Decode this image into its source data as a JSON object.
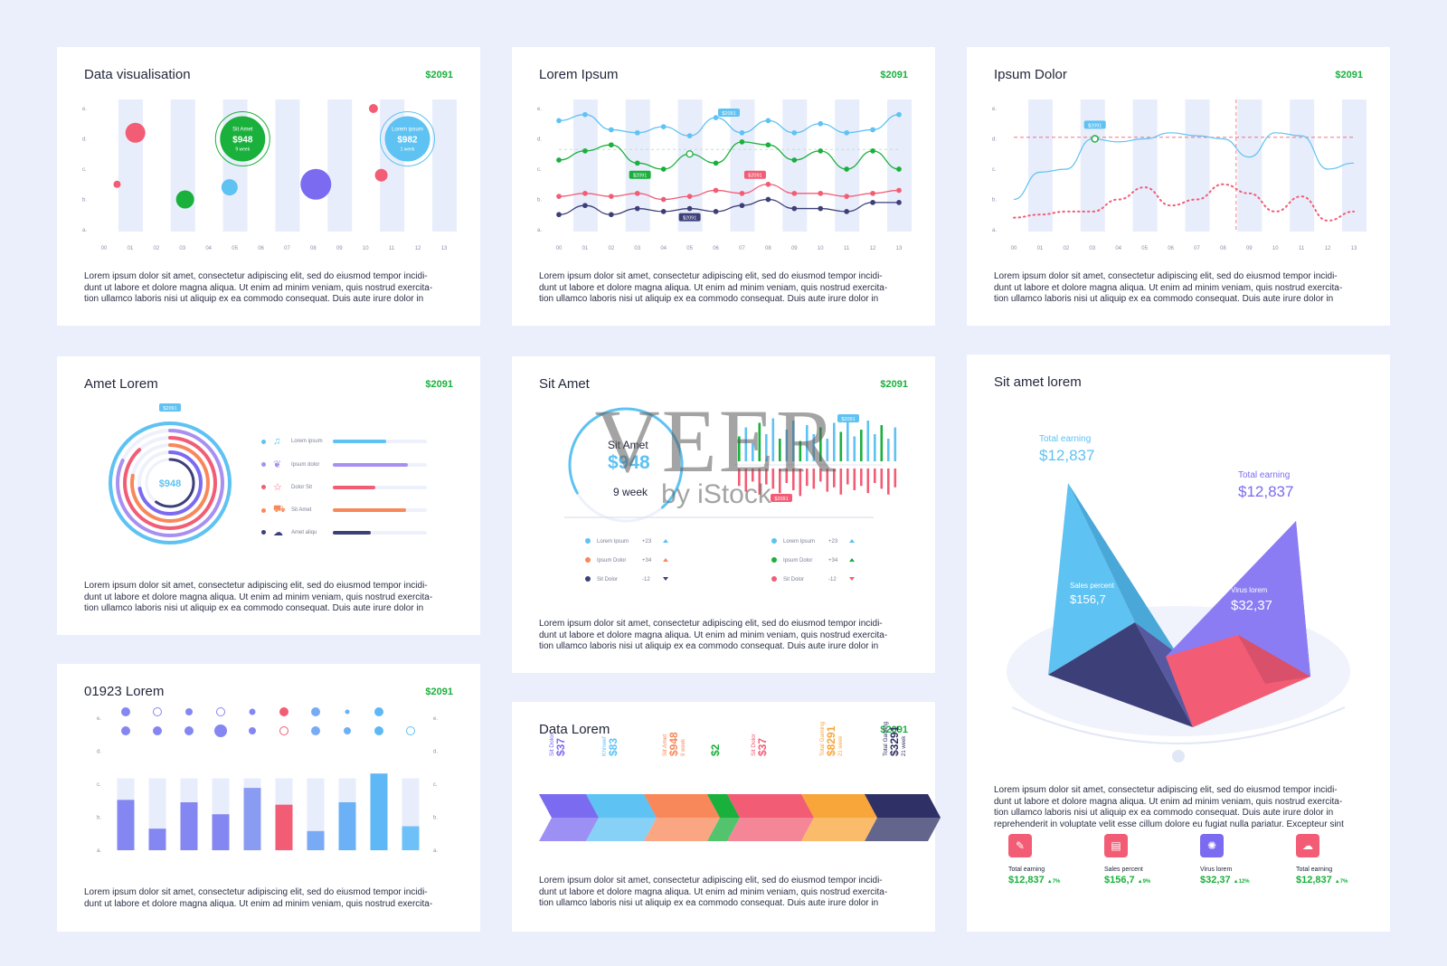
{
  "badge": "$2091",
  "desc3": "Lorem ipsum dolor sit amet, consectetur adipiscing elit, sed do eiusmod tempor incidi-\ndunt ut labore et dolore magna aliqua. Ut enim ad minim veniam, quis nostrud exercita-\ntion ullamco laboris nisi ut aliquip ex ea commodo consequat. Duis aute irure dolor in",
  "desc2": "Lorem ipsum dolor sit amet, consectetur adipiscing elit, sed do eiusmod tempor incidi-\ndunt ut labore et dolore magna aliqua. Ut enim ad minim veniam, quis nostrud exercita-",
  "desc5": "Lorem ipsum dolor sit amet, consectetur adipiscing elit, sed do eiusmod tempor incidi-\ndunt ut labore et dolore magna aliqua. Ut enim ad minim veniam, quis nostrud exercita-\ntion ullamco laboris nisi ut aliquip ex ea commodo consequat. Duis aute irure dolor in\nreprehenderit in voluptate velit esse cillum dolore eu fugiat nulla pariatur. Excepteur sint",
  "watermark": {
    "big": "VEER",
    "small": "by iStock"
  },
  "chart_data": [
    {
      "id": "bubble",
      "type": "scatter",
      "title": "Data visualisation",
      "x_ticks": [
        "00",
        "01",
        "02",
        "03",
        "04",
        "05",
        "06",
        "07",
        "08",
        "09",
        "10",
        "11",
        "12",
        "13"
      ],
      "y_ticks": [
        "a.",
        "b.",
        "c.",
        "d.",
        "e."
      ],
      "points": [
        {
          "x": 0.5,
          "y": 1.5,
          "r": 4,
          "color": "#f25d75"
        },
        {
          "x": 1.2,
          "y": 3.2,
          "r": 11,
          "color": "#f25d75"
        },
        {
          "x": 3.1,
          "y": 1.0,
          "r": 10,
          "color": "#1ab03c"
        },
        {
          "x": 4.8,
          "y": 1.4,
          "r": 9,
          "color": "#5ec2f2"
        },
        {
          "x": 8.1,
          "y": 1.5,
          "r": 17,
          "color": "#7b6bf0"
        },
        {
          "x": 10.3,
          "y": 4.0,
          "r": 5,
          "color": "#f25d75"
        },
        {
          "x": 10.6,
          "y": 1.8,
          "r": 7,
          "color": "#f25d75"
        }
      ],
      "callouts": [
        {
          "x": 5.3,
          "y": 3.0,
          "label": "Sit Amet",
          "value": "$948",
          "sub": "9 week",
          "color": "#1ab03c"
        },
        {
          "x": 11.6,
          "y": 3.0,
          "label": "Lorem ipsum",
          "value": "$982",
          "sub": "1 week",
          "color": "#5ec2f2"
        }
      ]
    },
    {
      "id": "lines",
      "type": "line",
      "title": "Lorem Ipsum",
      "x_ticks": [
        "00",
        "01",
        "02",
        "03",
        "04",
        "05",
        "06",
        "07",
        "08",
        "09",
        "10",
        "11",
        "12",
        "13"
      ],
      "y_ticks": [
        "a.",
        "b.",
        "c.",
        "d.",
        "e."
      ],
      "series": [
        {
          "color": "#5ec2f2",
          "values": [
            3.6,
            3.8,
            3.3,
            3.2,
            3.4,
            3.1,
            3.7,
            3.2,
            3.6,
            3.2,
            3.5,
            3.2,
            3.3,
            3.8
          ]
        },
        {
          "color": "#1ab03c",
          "values": [
            2.3,
            2.6,
            2.8,
            2.2,
            2.0,
            2.5,
            2.2,
            2.9,
            2.8,
            2.3,
            2.6,
            2.0,
            2.6,
            2.0
          ]
        },
        {
          "color": "#f25d75",
          "values": [
            1.1,
            1.2,
            1.1,
            1.2,
            1.0,
            1.1,
            1.3,
            1.2,
            1.5,
            1.2,
            1.2,
            1.1,
            1.2,
            1.3
          ]
        },
        {
          "color": "#3d3f78",
          "values": [
            0.5,
            0.8,
            0.5,
            0.7,
            0.6,
            0.7,
            0.6,
            0.8,
            1.0,
            0.7,
            0.7,
            0.6,
            0.9,
            0.9
          ]
        }
      ],
      "tags": [
        {
          "x": 6.5,
          "y": 3.85,
          "text": "$2091",
          "color": "#5ec2f2"
        },
        {
          "x": 3.1,
          "y": 1.8,
          "text": "$2091",
          "color": "#1ab03c"
        },
        {
          "x": 7.5,
          "y": 1.8,
          "text": "$2091",
          "color": "#f25d75"
        },
        {
          "x": 5.0,
          "y": 0.4,
          "text": "$2091",
          "color": "#3d3f78"
        }
      ]
    },
    {
      "id": "wave",
      "type": "line",
      "title": "Ipsum Dolor",
      "x_ticks": [
        "00",
        "01",
        "02",
        "03",
        "04",
        "05",
        "06",
        "07",
        "08",
        "09",
        "10",
        "11",
        "12",
        "13"
      ],
      "y_ticks": [
        "a.",
        "b.",
        "c.",
        "d.",
        "e."
      ],
      "series": [
        {
          "color": "#5ec2f2",
          "values": [
            1.0,
            1.9,
            2.0,
            3.0,
            2.9,
            3.0,
            3.2,
            3.1,
            3.0,
            2.4,
            3.2,
            3.1,
            2.0,
            2.2
          ]
        },
        {
          "color": "#f25d75",
          "dotted": true,
          "values": [
            0.4,
            0.5,
            0.6,
            0.6,
            1.0,
            1.4,
            0.8,
            1.0,
            1.5,
            1.2,
            0.6,
            1.1,
            0.3,
            0.6
          ]
        }
      ],
      "tag": {
        "x": 3.1,
        "y": 3.45,
        "text": "$2091"
      },
      "crosshair": {
        "x": 8.5,
        "y": 3.05
      }
    },
    {
      "id": "radial",
      "type": "bar",
      "title": "Amet Lorem",
      "center_value": "$948",
      "top_tag": "$2091",
      "items": [
        {
          "label": "Lorem ipsum",
          "icon": "music-note-icon",
          "glyph": "♫",
          "color": "#5ec2f2",
          "value": 0.57
        },
        {
          "label": "Ipsum dolor",
          "icon": "leaf-icon",
          "glyph": "❦",
          "color": "#a890f0",
          "value": 0.8
        },
        {
          "label": "Dolor Sit",
          "icon": "star-outline-icon",
          "glyph": "☆",
          "color": "#f25d75",
          "value": 0.45
        },
        {
          "label": "Sit Amet",
          "icon": "truck-icon",
          "glyph": "⛟",
          "color": "#f8885a",
          "value": 0.78
        },
        {
          "label": "Amet aliqu",
          "icon": "cloud-icon",
          "glyph": "☁",
          "color": "#3d3f78",
          "value": 0.4
        }
      ]
    },
    {
      "id": "gauge",
      "type": "bar",
      "title": "Sit Amet",
      "gauge_label": "Sit Amet",
      "gauge_value": "$948",
      "gauge_sub": "9 week",
      "gauge_fraction": 0.72,
      "tag_top": "$2091",
      "tag_bottom": "$2091",
      "up_bars": [
        0.55,
        0.75,
        0.4,
        0.85,
        0.6,
        0.95,
        0.5,
        0.7,
        0.9,
        0.45,
        0.8,
        0.6,
        0.75,
        0.5,
        0.85,
        0.65,
        1.0,
        0.55,
        0.7,
        0.9,
        0.6,
        0.8,
        0.5,
        0.75
      ],
      "down_bars": [
        0.6,
        0.8,
        0.45,
        0.9,
        0.55,
        0.7,
        0.85,
        0.5,
        0.75,
        0.95,
        0.6,
        0.7,
        0.45,
        0.8,
        0.65,
        0.9,
        0.55,
        0.75,
        0.6,
        0.85,
        0.5,
        0.7,
        0.9,
        0.65
      ],
      "legend": [
        {
          "label": "Lorem Ipsum",
          "value": "+23",
          "dir": "up",
          "color": "#5ec2f2"
        },
        {
          "label": "Ipsum Dolor",
          "value": "+34",
          "dir": "up",
          "color": "#f8885a"
        },
        {
          "label": "Sit Dolor",
          "value": "-12",
          "dir": "down",
          "color": "#3d3f78"
        },
        {
          "label": "Lorem Ipsum",
          "value": "+23",
          "dir": "up",
          "color": "#5ec2f2"
        },
        {
          "label": "Ipsum Dolor",
          "value": "+34",
          "dir": "up",
          "color": "#1ab03c"
        },
        {
          "label": "Sit Dolor",
          "value": "-12",
          "dir": "down",
          "color": "#f25d75"
        }
      ]
    },
    {
      "id": "stacked",
      "type": "bar",
      "title": "01923 Lorem",
      "y_ticks": [
        "a.",
        "b.",
        "c.",
        "d.",
        "e."
      ],
      "bars": [
        {
          "value": 2.1,
          "color": "#8487f2"
        },
        {
          "value": 0.9,
          "color": "#8487f2"
        },
        {
          "value": 2.0,
          "color": "#8487f2"
        },
        {
          "value": 1.5,
          "color": "#8487f2"
        },
        {
          "value": 2.6,
          "color": "#8a9cf2"
        },
        {
          "value": 1.9,
          "color": "#f25d75"
        },
        {
          "value": 0.8,
          "color": "#79aaf5"
        },
        {
          "value": 2.0,
          "color": "#6cb0f5"
        },
        {
          "value": 3.2,
          "color": "#5eb8f5"
        },
        {
          "value": 1.0,
          "color": "#6ec1f8"
        }
      ],
      "dots_top": [
        {
          "r": 4.5,
          "f": 1
        },
        {
          "r": 4.5,
          "f": 0
        },
        {
          "r": 3.5,
          "f": 1
        },
        {
          "r": 4.5,
          "f": 0
        },
        {
          "r": 3,
          "f": 1
        },
        {
          "r": 4.5,
          "f": 1
        },
        {
          "r": 4.5,
          "f": 1
        },
        {
          "r": 2,
          "f": 1
        },
        {
          "r": 4.5,
          "f": 1
        },
        {
          "r": 0,
          "f": 0
        }
      ],
      "dots_bottom": [
        {
          "r": 4.5,
          "f": 1
        },
        {
          "r": 4.5,
          "f": 1
        },
        {
          "r": 4.5,
          "f": 1
        },
        {
          "r": 6.5,
          "f": 1
        },
        {
          "r": 3.5,
          "f": 1
        },
        {
          "r": 4.5,
          "f": 0
        },
        {
          "r": 4.5,
          "f": 1
        },
        {
          "r": 3.5,
          "f": 1
        },
        {
          "r": 4.5,
          "f": 1
        },
        {
          "r": 4.5,
          "f": 0
        }
      ]
    },
    {
      "id": "arrows",
      "type": "bar",
      "title": "Data Lorem",
      "items": [
        {
          "label": "Sit Dolor",
          "value": "$37",
          "color": "#7b6bf0"
        },
        {
          "label": "Khhwef",
          "value": "$83",
          "color": "#5ec2f2"
        },
        {
          "label": "Sit Amet",
          "value": "$948",
          "sub": "9 week",
          "color": "#f8885a"
        },
        {
          "label": "",
          "value": "$2",
          "color": "#1ab03c"
        },
        {
          "label": "Sit Dolor",
          "value": "$37",
          "color": "#f25d75"
        },
        {
          "label": "Total Gaming",
          "value": "$8291",
          "sub": "21 week",
          "color": "#f8a53a"
        },
        {
          "label": "Total Gaming",
          "value": "$3291",
          "sub": "21 week",
          "color": "#2f3166"
        }
      ],
      "widths": [
        52,
        64,
        70,
        22,
        82,
        70,
        70
      ]
    },
    {
      "id": "pyramid",
      "type": "area",
      "title": "Sit amet lorem",
      "labels": [
        {
          "label": "Total earning",
          "value": "$12,837",
          "color": "#5ec2f2"
        },
        {
          "label": "Total earning",
          "value": "$12,837",
          "color": "#7b6bf0"
        },
        {
          "label": "Sales percent",
          "value": "$156,7",
          "color": "#ffffff"
        },
        {
          "label": "Virus lorem",
          "value": "$32,37",
          "color": "#ffffff"
        }
      ],
      "stats": [
        {
          "label": "Total earning",
          "value": "$12,837",
          "change": "7%",
          "color": "#f25d75",
          "icon": "tag-icon",
          "glyph": "✎"
        },
        {
          "label": "Sales percent",
          "value": "$156,7",
          "change": "9%",
          "color": "#f25d75",
          "icon": "document-icon",
          "glyph": "▤"
        },
        {
          "label": "Virus lorem",
          "value": "$32,37",
          "change": "12%",
          "color": "#7b6bf0",
          "icon": "virus-icon",
          "glyph": "✺"
        },
        {
          "label": "Total earning",
          "value": "$12,837",
          "change": "7%",
          "color": "#f25d75",
          "icon": "cloud-icon",
          "glyph": "☁"
        }
      ]
    }
  ]
}
